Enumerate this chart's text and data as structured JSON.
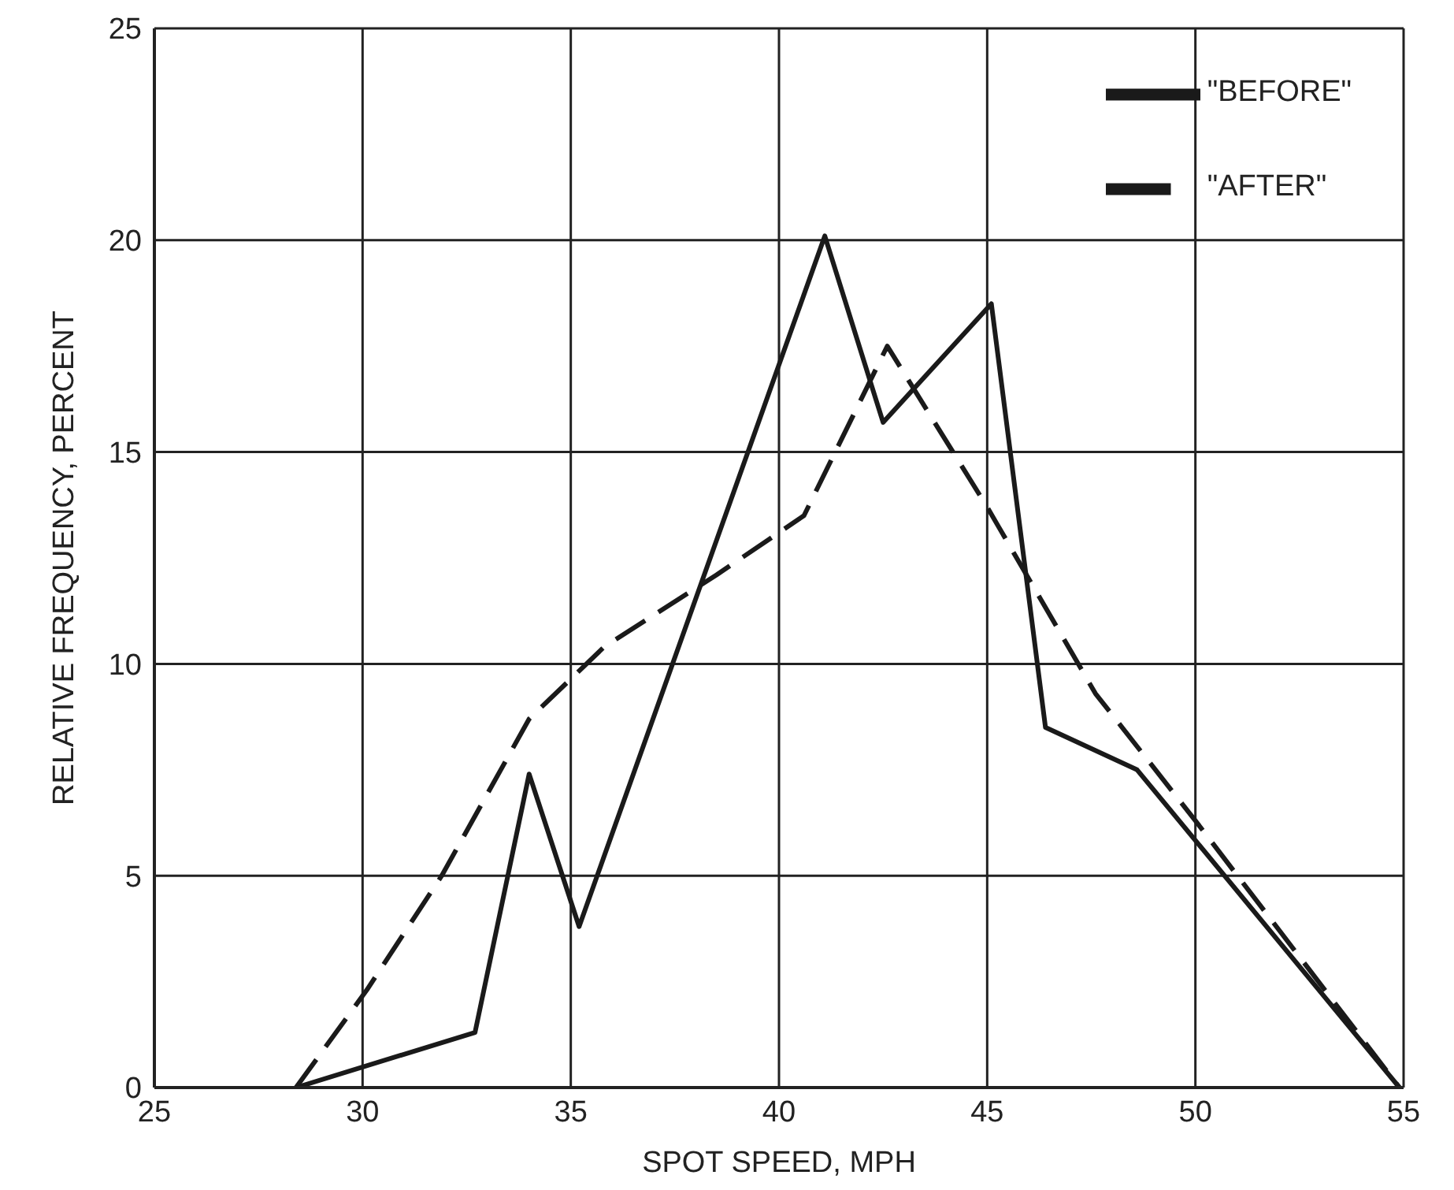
{
  "chart_data": {
    "type": "line",
    "xlabel": "SPOT SPEED, MPH",
    "ylabel": "RELATIVE FREQUENCY, PERCENT",
    "xlim": [
      25,
      55
    ],
    "xticks": [
      25,
      30,
      35,
      40,
      45,
      50,
      55
    ],
    "ylim": [
      0,
      25
    ],
    "yticks": [
      0,
      5,
      10,
      15,
      20,
      25
    ],
    "grid": true,
    "legend": "top right",
    "marker": "none",
    "series": [
      {
        "name": "\"BEFORE\"",
        "color": "#1a1a1a",
        "line_style": "solid",
        "x": [
          28.4,
          32.7,
          34.0,
          35.2,
          41.1,
          42.5,
          45.1,
          46.4,
          48.6,
          54.9
        ],
        "values": [
          0,
          1.3,
          7.4,
          3.8,
          20.1,
          15.7,
          18.5,
          8.5,
          7.5,
          0
        ]
      },
      {
        "name": "\"AFTER\"",
        "color": "#1a1a1a",
        "line_style": "dashed",
        "x": [
          28.4,
          30.1,
          31.9,
          34.0,
          35.8,
          38.5,
          40.6,
          42.6,
          45.0,
          47.6,
          50.0,
          54.9
        ],
        "values": [
          0,
          2.3,
          5.0,
          8.7,
          10.4,
          12.1,
          13.5,
          17.5,
          13.7,
          9.3,
          6.3,
          0
        ]
      }
    ]
  }
}
